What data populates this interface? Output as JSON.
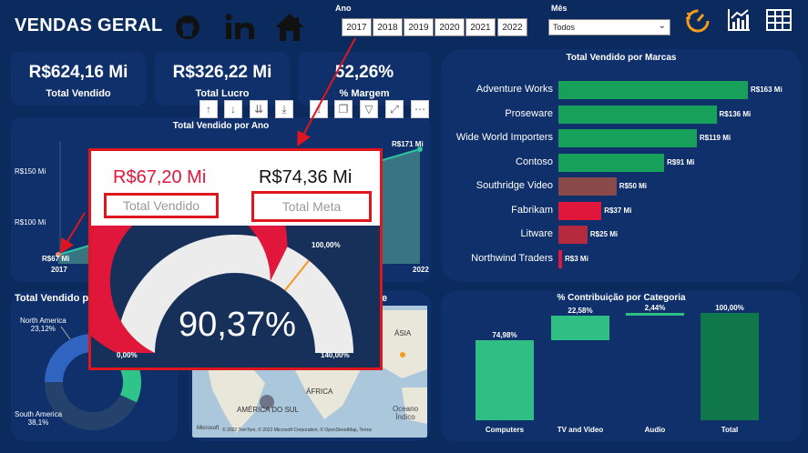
{
  "header": {
    "title": "VENDAS GERAL"
  },
  "social_icons": [
    "github-icon",
    "linkedin-icon",
    "home-icon"
  ],
  "filters": {
    "year_label": "Ano",
    "years": [
      "2017",
      "2018",
      "2019",
      "2020",
      "2021",
      "2022"
    ],
    "month_label": "Mês",
    "month_value": "Todos"
  },
  "kpis": [
    {
      "value": "R$624,16 Mi",
      "label": "Total Vendido"
    },
    {
      "value": "R$326,22 Mi",
      "label": "Total Lucro"
    },
    {
      "value": "52,26%",
      "label": "% Margem"
    }
  ],
  "year_chart": {
    "title": "Total Vendido por Ano",
    "y_ticks": [
      "R$150 Mi",
      "R$100 Mi"
    ],
    "first_label": "R$67 Mi",
    "last_label": "R$171 Mi",
    "x_first": "2017",
    "x_last": "2022"
  },
  "brands_chart": {
    "title": "Total Vendido por Marcas",
    "items": [
      {
        "name": "Adventure Works",
        "value": 163,
        "label": "R$163 Mi",
        "color": "#16a05a"
      },
      {
        "name": "Proseware",
        "value": 136,
        "label": "R$136 Mi",
        "color": "#16a05a"
      },
      {
        "name": "Wide World Importers",
        "value": 119,
        "label": "R$119 Mi",
        "color": "#16a05a"
      },
      {
        "name": "Contoso",
        "value": 91,
        "label": "R$91 Mi",
        "color": "#16a05a"
      },
      {
        "name": "Southridge Video",
        "value": 50,
        "label": "R$50 Mi",
        "color": "#8a4a4a"
      },
      {
        "name": "Fabrikam",
        "value": 37,
        "label": "R$37 Mi",
        "color": "#e0163a"
      },
      {
        "name": "Litware",
        "value": 25,
        "label": "R$25 Mi",
        "color": "#b52a3c"
      },
      {
        "name": "Northwind Traders",
        "value": 3,
        "label": "R$3 Mi",
        "color": "#e0163a"
      }
    ]
  },
  "donut_chart": {
    "title": "Total Vendido p",
    "labels": [
      {
        "name": "North America",
        "pct": "23,12%"
      },
      {
        "name": "South America",
        "pct": "38,1%"
      }
    ]
  },
  "map": {
    "title_fragment": "e",
    "labels": [
      "ÁSIA",
      "ÁFRICA",
      "AMÉRICA DO SUL",
      "Oceano",
      "Índico"
    ],
    "attribution": "© 2022 TomTom, © 2022 Microsoft Corporation, © OpenStreetMap, Terms",
    "brand": "Microsoft"
  },
  "category_chart": {
    "title": "% Contribuição por Categoria",
    "items": [
      {
        "name": "Computers",
        "value": 74.98,
        "label": "74,98%"
      },
      {
        "name": "TV and Video",
        "value": 22.58,
        "label": "22,58%"
      },
      {
        "name": "Audio",
        "value": 2.44,
        "label": "2,44%"
      },
      {
        "name": "Total",
        "value": 100.0,
        "label": "100,00%"
      }
    ]
  },
  "popup": {
    "total_vendido_value": "R$67,20 Mi",
    "total_vendido_label": "Total Vendido",
    "total_meta_value": "R$74,36 Mi",
    "total_meta_label": "Total Meta",
    "gauge_pct": "90,37%",
    "gauge_value": 90.37,
    "gauge_min_label": "0,00%",
    "gauge_max_label": "140,00%",
    "gauge_target_label": "100,00%",
    "gauge_max": 140,
    "gauge_target": 100
  },
  "colors": {
    "background": "#0b2a5e",
    "card": "#10306b",
    "green": "#16a05a",
    "red": "#e0163a",
    "orange": "#f29a1b"
  }
}
